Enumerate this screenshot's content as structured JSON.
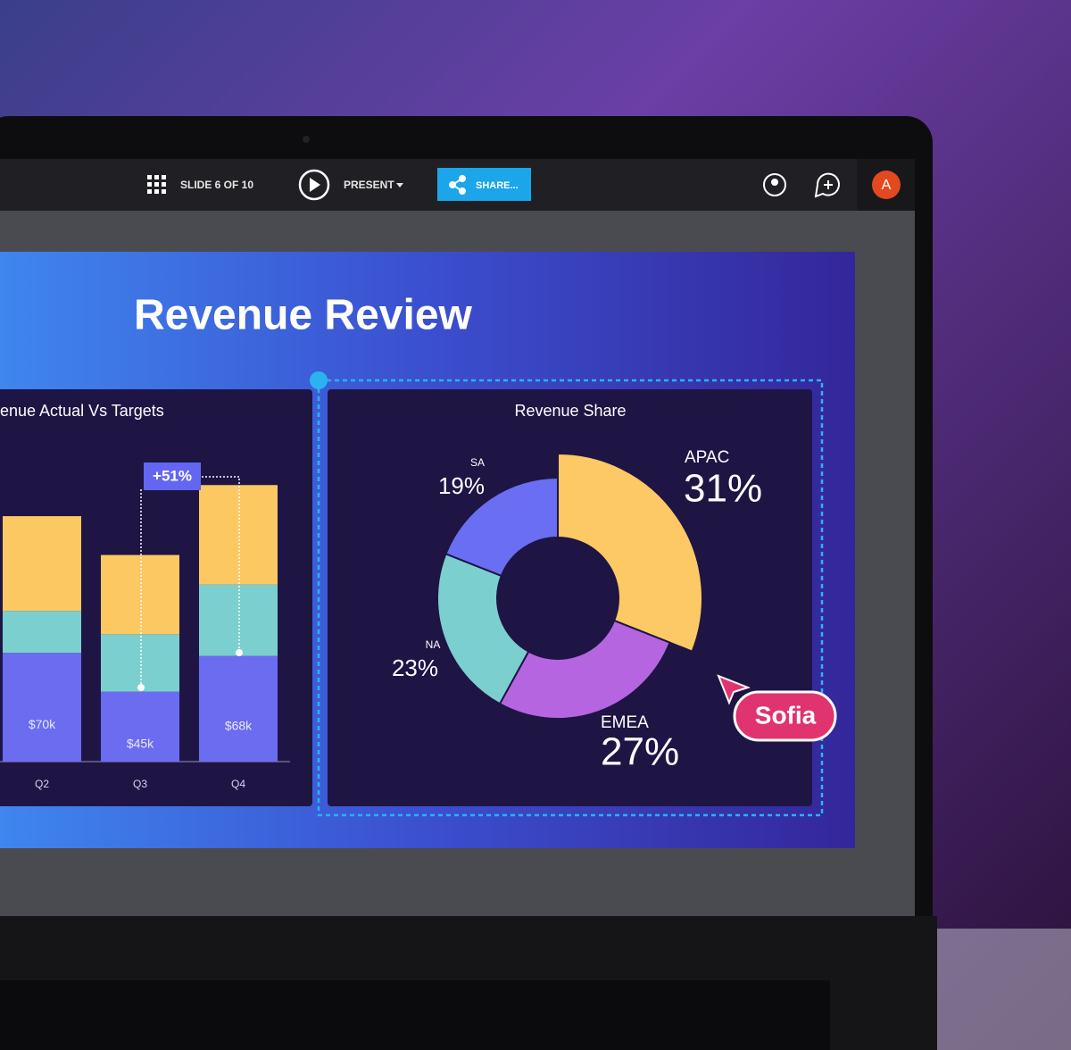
{
  "toolbar": {
    "slide_indicator": "SLIDE 6 OF 10",
    "present": "PRESENT",
    "share": "SHARE...",
    "avatar": "A"
  },
  "slide": {
    "title": "Revenue Review"
  },
  "cursor": {
    "name": "Sofia"
  },
  "chart_data": [
    {
      "type": "bar",
      "stacked": true,
      "title": "enue Actual Vs Targets",
      "categories": [
        "Q2",
        "Q3",
        "Q4"
      ],
      "series": [
        {
          "color": "#6b6cf0",
          "values": [
            70,
            45,
            68
          ],
          "value_labels": [
            "$70k",
            "$45k",
            "$68k"
          ]
        },
        {
          "color": "#7ccfcf",
          "values": [
            27,
            37,
            46
          ]
        },
        {
          "color": "#fcc862",
          "values": [
            61,
            51,
            64
          ]
        }
      ],
      "ylim": [
        0,
        200
      ],
      "annotation": "+51%"
    },
    {
      "type": "pie",
      "donut": true,
      "title": "Revenue Share",
      "categories": [
        "APAC",
        "EMEA",
        "NA",
        "SA"
      ],
      "values": [
        31,
        27,
        23,
        19
      ],
      "value_labels": [
        "31%",
        "27%",
        "23%",
        "19%"
      ],
      "colors": [
        "#fdc964",
        "#b565e0",
        "#7ccfcf",
        "#6a6ef2"
      ]
    }
  ]
}
